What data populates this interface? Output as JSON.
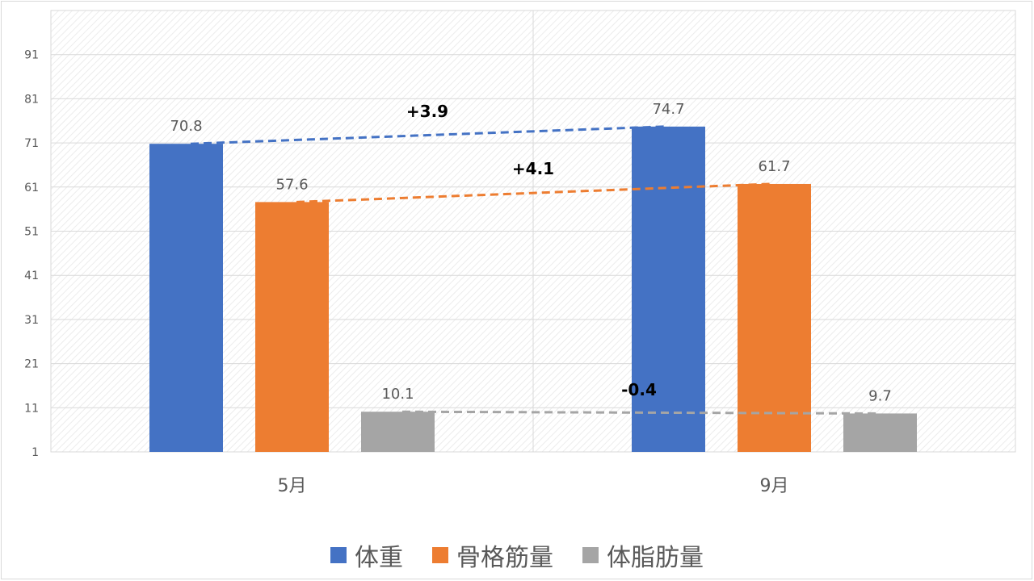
{
  "chart_data": {
    "type": "bar",
    "categories": [
      "5月",
      "9月"
    ],
    "series": [
      {
        "name": "体重",
        "values": [
          70.8,
          74.7
        ],
        "color": "#4472C4"
      },
      {
        "name": "骨格筋量",
        "values": [
          57.6,
          61.7
        ],
        "color": "#ED7D31"
      },
      {
        "name": "体脂肪量",
        "values": [
          10.1,
          9.7
        ],
        "color": "#A5A5A5"
      }
    ],
    "data_labels": [
      [
        "70.8",
        "74.7"
      ],
      [
        "57.6",
        "61.7"
      ],
      [
        "10.1",
        "9.7"
      ]
    ],
    "y_ticks": [
      "1",
      "11",
      "21",
      "31",
      "41",
      "51",
      "61",
      "71",
      "81",
      "91"
    ],
    "ylim": [
      1,
      101
    ],
    "grid": true,
    "legend": "bottom",
    "annotations": [
      {
        "text": "+3.9",
        "series": 0
      },
      {
        "text": "+4.1",
        "series": 1
      },
      {
        "text": "-0.4",
        "series": 2
      }
    ]
  }
}
